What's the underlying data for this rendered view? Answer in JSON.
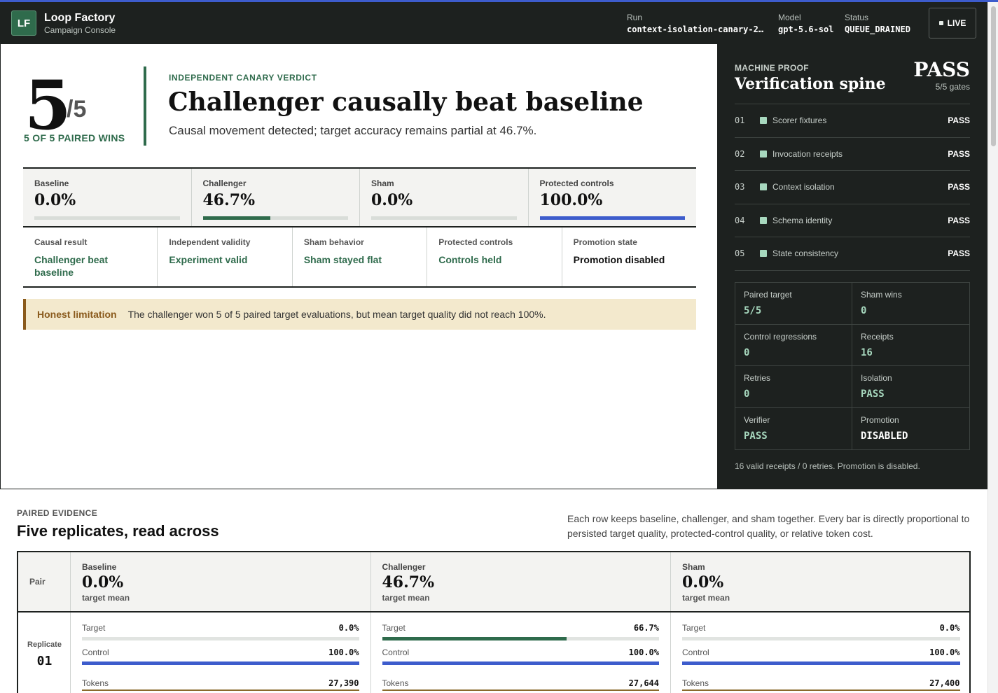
{
  "header": {
    "logo": "LF",
    "app_name": "Loop Factory",
    "app_sub": "Campaign Console",
    "run_label": "Run",
    "run_value": "context-isolation-canary-2…",
    "model_label": "Model",
    "model_value": "gpt-5.6-sol",
    "status_label": "Status",
    "status_value": "QUEUE_DRAINED",
    "live_label": "LIVE"
  },
  "verdict": {
    "wins_big": "5",
    "wins_den": "/5",
    "wins_label": "5 OF 5 PAIRED WINS",
    "kicker": "INDEPENDENT CANARY VERDICT",
    "title": "Challenger causally beat baseline",
    "subtitle": "Causal movement detected; target accuracy remains partial at 46.7%."
  },
  "metrics": [
    {
      "label": "Baseline",
      "value": "0.0%",
      "fraction": 0.0,
      "color": "#2f6b4c"
    },
    {
      "label": "Challenger",
      "value": "46.7%",
      "fraction": 0.467,
      "color": "#2f6b4c"
    },
    {
      "label": "Sham",
      "value": "0.0%",
      "fraction": 0.0,
      "color": "#2f6b4c"
    },
    {
      "label": "Protected controls",
      "value": "100.0%",
      "fraction": 1.0,
      "color": "#3d5ccc"
    }
  ],
  "states": [
    {
      "label": "Causal result",
      "value": "Challenger beat baseline",
      "color": "#2f6b4c"
    },
    {
      "label": "Independent validity",
      "value": "Experiment valid",
      "color": "#2f6b4c"
    },
    {
      "label": "Sham behavior",
      "value": "Sham stayed flat",
      "color": "#2f6b4c"
    },
    {
      "label": "Protected controls",
      "value": "Controls held",
      "color": "#2f6b4c"
    },
    {
      "label": "Promotion state",
      "value": "Promotion disabled",
      "color": "#111111"
    }
  ],
  "limitation": {
    "label": "Honest limitation",
    "text": "The challenger won 5 of 5 paired target evaluations, but mean target quality did not reach 100%."
  },
  "side": {
    "kicker": "MACHINE PROOF",
    "title": "Verification spine",
    "pass": "PASS",
    "gates_summary": "5/5 gates",
    "gates": [
      {
        "num": "01",
        "name": "Scorer fixtures",
        "status": "PASS"
      },
      {
        "num": "02",
        "name": "Invocation receipts",
        "status": "PASS"
      },
      {
        "num": "03",
        "name": "Context isolation",
        "status": "PASS"
      },
      {
        "num": "04",
        "name": "Schema identity",
        "status": "PASS"
      },
      {
        "num": "05",
        "name": "State consistency",
        "status": "PASS"
      }
    ],
    "stats": [
      {
        "label": "Paired target",
        "value": "5/5",
        "tone": "green"
      },
      {
        "label": "Sham wins",
        "value": "0",
        "tone": "green"
      },
      {
        "label": "Control regressions",
        "value": "0",
        "tone": "green"
      },
      {
        "label": "Receipts",
        "value": "16",
        "tone": "green"
      },
      {
        "label": "Retries",
        "value": "0",
        "tone": "green"
      },
      {
        "label": "Isolation",
        "value": "PASS",
        "tone": "green"
      },
      {
        "label": "Verifier",
        "value": "PASS",
        "tone": "green"
      },
      {
        "label": "Promotion",
        "value": "DISABLED",
        "tone": "white"
      }
    ],
    "footer": "16 valid receipts / 0 retries. Promotion is disabled."
  },
  "evidence": {
    "kicker": "PAIRED EVIDENCE",
    "title": "Five replicates, read across",
    "description": "Each row keeps baseline, challenger, and sham together. Every bar is directly proportional to persisted target quality, protected-control quality, or relative token cost.",
    "pair_label": "Pair",
    "columns": [
      {
        "name": "Baseline",
        "value": "0.0%",
        "sub": "target mean"
      },
      {
        "name": "Challenger",
        "value": "46.7%",
        "sub": "target mean"
      },
      {
        "name": "Sham",
        "value": "0.0%",
        "sub": "target mean"
      }
    ],
    "replicate_label": "Replicate",
    "replicate": {
      "num": "01",
      "cells": [
        {
          "target_label": "Target",
          "target": "0.0%",
          "target_fraction": 0.0,
          "control_label": "Control",
          "control": "100.0%",
          "control_fraction": 1.0,
          "tokens_label": "Tokens",
          "tokens": "27,390"
        },
        {
          "target_label": "Target",
          "target": "66.7%",
          "target_fraction": 0.667,
          "control_label": "Control",
          "control": "100.0%",
          "control_fraction": 1.0,
          "tokens_label": "Tokens",
          "tokens": "27,644"
        },
        {
          "target_label": "Target",
          "target": "0.0%",
          "target_fraction": 0.0,
          "control_label": "Control",
          "control": "100.0%",
          "control_fraction": 1.0,
          "tokens_label": "Tokens",
          "tokens": "27,400"
        }
      ]
    }
  }
}
